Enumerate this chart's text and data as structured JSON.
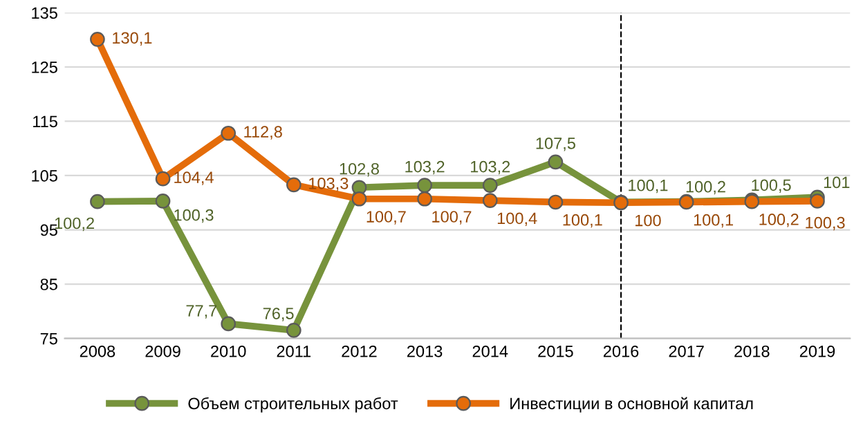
{
  "chart_data": {
    "type": "line",
    "categories": [
      "2008",
      "2009",
      "2010",
      "2011",
      "2012",
      "2013",
      "2014",
      "2015",
      "2016",
      "2017",
      "2018",
      "2019"
    ],
    "series": [
      {
        "name": "Объем строительных работ",
        "color": "#77933c",
        "values": [
          100.2,
          100.3,
          77.7,
          76.5,
          102.8,
          103.2,
          103.2,
          107.5,
          100.1,
          100.2,
          100.5,
          101
        ],
        "value_labels": [
          "100,2",
          "100,3",
          "77,7",
          "76,5",
          "102,8",
          "103,2",
          "103,2",
          "107,5",
          "100,1",
          "100,2",
          "100,5",
          "101"
        ]
      },
      {
        "name": "Инвестиции в основной капитал",
        "color": "#e46c0a",
        "values": [
          130.1,
          104.4,
          112.8,
          103.3,
          100.7,
          100.7,
          100.4,
          100.1,
          100,
          100.1,
          100.2,
          100.3
        ],
        "value_labels": [
          "130,1",
          "104,4",
          "112,8",
          "103,3",
          "100,7",
          "100,7",
          "100,4",
          "100,1",
          "100",
          "100,1",
          "100,2",
          "100,3"
        ]
      }
    ],
    "ylim": [
      75,
      135
    ],
    "yticks": [
      75,
      85,
      95,
      105,
      115,
      125,
      135
    ],
    "grid": "y",
    "legend": "bottom",
    "marker": "circle",
    "line_style": "solid",
    "ref_lines": [
      {
        "axis": "x",
        "value": "2016",
        "line_style": "dashed",
        "color": "#000000"
      }
    ]
  }
}
